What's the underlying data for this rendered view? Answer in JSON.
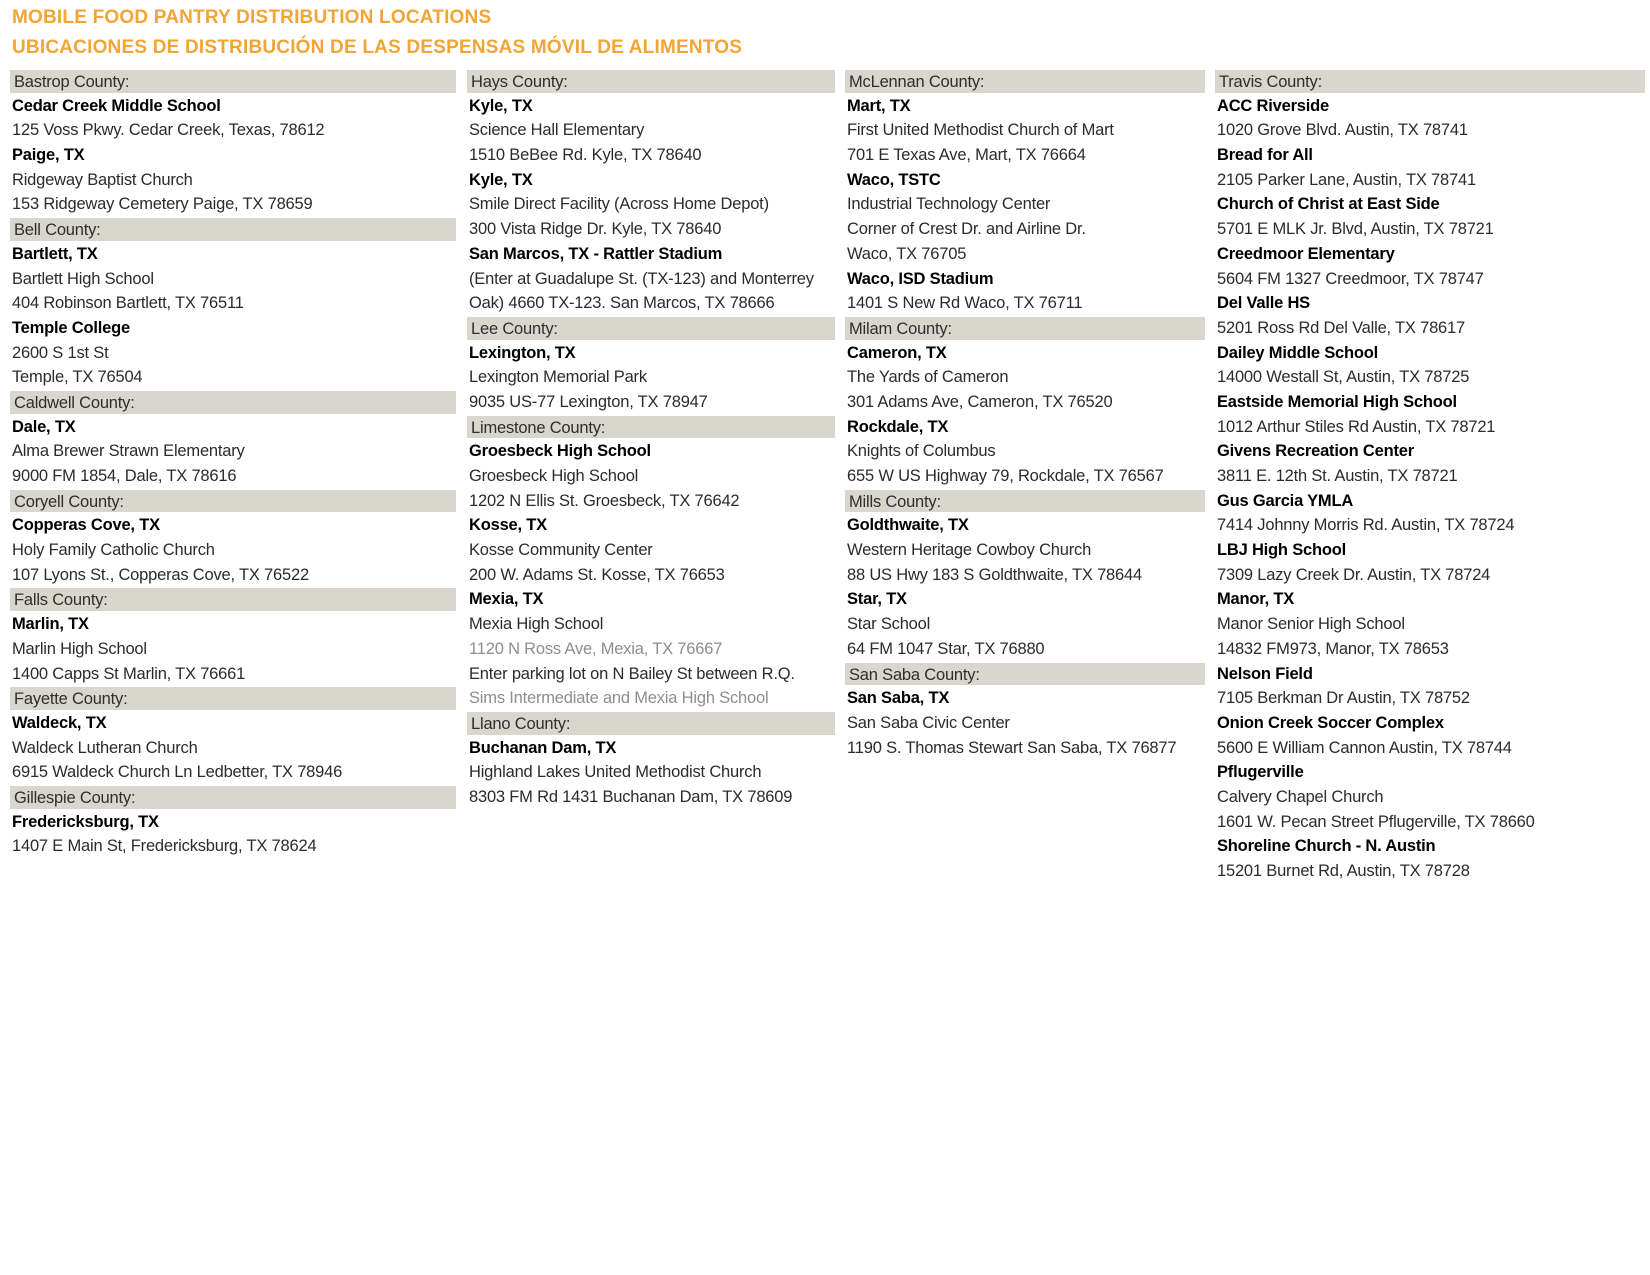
{
  "header": {
    "title_en": "MOBILE FOOD PANTRY DISTRIBUTION LOCATIONS",
    "title_es": "UBICACIONES DE DISTRIBUCIÓN DE LAS DESPENSAS MÓVIL DE ALIMENTOS"
  },
  "colors": {
    "title_orange": "#F2A434",
    "county_bar": "#D9D6CE",
    "body_text": "#2B2B2B",
    "muted_text": "#8E8E8E"
  },
  "columns": [
    {
      "items": [
        {
          "type": "county",
          "text": "Bastrop County:"
        },
        {
          "type": "bold",
          "text": "Cedar Creek Middle School"
        },
        {
          "type": "normal",
          "text": "125 Voss Pkwy. Cedar Creek, Texas, 78612"
        },
        {
          "type": "bold",
          "text": "Paige, TX"
        },
        {
          "type": "normal",
          "text": "Ridgeway Baptist Church"
        },
        {
          "type": "normal",
          "text": "153 Ridgeway Cemetery Paige, TX 78659"
        },
        {
          "type": "county",
          "text": "Bell County:"
        },
        {
          "type": "bold",
          "text": "Bartlett, TX"
        },
        {
          "type": "normal",
          "text": "Bartlett High School"
        },
        {
          "type": "normal",
          "text": "404 Robinson Bartlett, TX 76511"
        },
        {
          "type": "bold",
          "text": "Temple College"
        },
        {
          "type": "normal",
          "text": "2600 S 1st St"
        },
        {
          "type": "normal",
          "text": "Temple, TX 76504"
        },
        {
          "type": "county",
          "text": "Caldwell County:"
        },
        {
          "type": "bold",
          "text": "Dale, TX"
        },
        {
          "type": "normal",
          "text": "Alma Brewer Strawn Elementary"
        },
        {
          "type": "normal",
          "text": "9000 FM 1854, Dale, TX 78616"
        },
        {
          "type": "county",
          "text": "Coryell County:"
        },
        {
          "type": "bold",
          "text": "Copperas Cove, TX"
        },
        {
          "type": "normal",
          "text": "Holy Family Catholic Church"
        },
        {
          "type": "normal",
          "text": "107 Lyons St., Copperas Cove, TX 76522"
        },
        {
          "type": "county",
          "text": "Falls County:"
        },
        {
          "type": "bold",
          "text": "Marlin, TX"
        },
        {
          "type": "normal",
          "text": "Marlin High School"
        },
        {
          "type": "normal",
          "text": "1400 Capps St Marlin, TX 76661"
        },
        {
          "type": "county",
          "text": "Fayette County:"
        },
        {
          "type": "bold",
          "text": "Waldeck, TX"
        },
        {
          "type": "normal",
          "text": "Waldeck Lutheran Church"
        },
        {
          "type": "normal",
          "text": "6915 Waldeck Church Ln Ledbetter, TX 78946"
        },
        {
          "type": "county",
          "text": "Gillespie County:"
        },
        {
          "type": "bold",
          "text": "Fredericksburg, TX"
        },
        {
          "type": "normal",
          "text": "1407 E Main St, Fredericksburg, TX 78624"
        }
      ]
    },
    {
      "items": [
        {
          "type": "county",
          "text": "Hays County:"
        },
        {
          "type": "bold",
          "text": "Kyle, TX"
        },
        {
          "type": "normal",
          "text": "Science Hall Elementary"
        },
        {
          "type": "normal",
          "text": "1510 BeBee Rd. Kyle, TX 78640"
        },
        {
          "type": "bold",
          "text": "Kyle, TX"
        },
        {
          "type": "normal",
          "text": "Smile Direct Facility (Across Home Depot)"
        },
        {
          "type": "normal",
          "text": "300 Vista Ridge Dr. Kyle, TX 78640"
        },
        {
          "type": "bold",
          "text": "San Marcos, TX - Rattler Stadium"
        },
        {
          "type": "normal",
          "text": "(Enter at Guadalupe St. (TX-123) and Monterrey"
        },
        {
          "type": "normal",
          "text": "Oak) 4660 TX-123. San Marcos, TX 78666"
        },
        {
          "type": "county",
          "text": "Lee County:"
        },
        {
          "type": "bold",
          "text": "Lexington, TX"
        },
        {
          "type": "normal",
          "text": "Lexington Memorial Park"
        },
        {
          "type": "normal",
          "text": "9035 US-77 Lexington, TX 78947"
        },
        {
          "type": "county",
          "text": "Limestone County:"
        },
        {
          "type": "bold",
          "text": "Groesbeck High School"
        },
        {
          "type": "normal",
          "text": "Groesbeck High School"
        },
        {
          "type": "normal",
          "text": "1202 N Ellis St. Groesbeck, TX 76642"
        },
        {
          "type": "bold",
          "text": "Kosse, TX"
        },
        {
          "type": "normal",
          "text": "Kosse Community Center"
        },
        {
          "type": "normal",
          "text": "200 W. Adams St. Kosse, TX 76653"
        },
        {
          "type": "bold",
          "text": "Mexia, TX"
        },
        {
          "type": "normal",
          "text": "Mexia High School"
        },
        {
          "type": "gray",
          "text": "1120 N Ross Ave, Mexia, TX 76667"
        },
        {
          "type": "normal",
          "text": "Enter parking lot on N Bailey St between R.Q."
        },
        {
          "type": "gray",
          "text": "Sims Intermediate and Mexia High School"
        },
        {
          "type": "county",
          "text": "Llano County:"
        },
        {
          "type": "bold",
          "text": "Buchanan Dam, TX"
        },
        {
          "type": "normal",
          "text": "Highland Lakes United Methodist Church"
        },
        {
          "type": "normal",
          "text": "8303 FM Rd 1431 Buchanan Dam, TX 78609"
        }
      ]
    },
    {
      "items": [
        {
          "type": "county",
          "text": "McLennan County:"
        },
        {
          "type": "bold",
          "text": "Mart, TX"
        },
        {
          "type": "normal",
          "text": "First United Methodist Church of Mart"
        },
        {
          "type": "normal",
          "text": "701 E Texas Ave, Mart, TX 76664"
        },
        {
          "type": "bold",
          "text": "Waco, TSTC"
        },
        {
          "type": "normal",
          "text": "Industrial Technology Center"
        },
        {
          "type": "normal",
          "text": "Corner of Crest Dr. and Airline Dr."
        },
        {
          "type": "normal",
          "text": "Waco, TX 76705"
        },
        {
          "type": "bold",
          "text": "Waco, ISD Stadium"
        },
        {
          "type": "normal",
          "text": "1401 S New Rd Waco, TX 76711"
        },
        {
          "type": "county",
          "text": "Milam County:"
        },
        {
          "type": "bold",
          "text": "Cameron, TX"
        },
        {
          "type": "normal",
          "text": "The Yards of Cameron"
        },
        {
          "type": "normal",
          "text": "301 Adams Ave, Cameron, TX 76520"
        },
        {
          "type": "bold",
          "text": "Rockdale, TX"
        },
        {
          "type": "normal",
          "text": "Knights of Columbus"
        },
        {
          "type": "normal",
          "text": "655 W US Highway 79, Rockdale, TX 76567"
        },
        {
          "type": "county",
          "text": "Mills County:"
        },
        {
          "type": "bold",
          "text": "Goldthwaite, TX"
        },
        {
          "type": "normal",
          "text": "Western Heritage Cowboy Church"
        },
        {
          "type": "normal",
          "text": "88 US Hwy 183 S Goldthwaite, TX 78644"
        },
        {
          "type": "bold",
          "text": "Star, TX"
        },
        {
          "type": "normal",
          "text": "Star School"
        },
        {
          "type": "normal",
          "text": "64 FM 1047 Star, TX 76880"
        },
        {
          "type": "county",
          "text": "San Saba County:"
        },
        {
          "type": "bold",
          "text": "San Saba, TX"
        },
        {
          "type": "normal",
          "text": "San Saba Civic Center"
        },
        {
          "type": "normal",
          "text": "1190 S. Thomas Stewart San Saba, TX 76877"
        }
      ]
    },
    {
      "items": [
        {
          "type": "county",
          "text": "Travis County:"
        },
        {
          "type": "bold",
          "text": "ACC Riverside"
        },
        {
          "type": "normal",
          "text": "1020 Grove Blvd. Austin, TX 78741"
        },
        {
          "type": "bold",
          "text": "Bread for All"
        },
        {
          "type": "normal",
          "text": "2105 Parker Lane, Austin, TX 78741"
        },
        {
          "type": "bold",
          "text": "Church of Christ at East Side"
        },
        {
          "type": "normal",
          "text": "5701 E MLK Jr. Blvd, Austin, TX 78721"
        },
        {
          "type": "bold",
          "text": "Creedmoor Elementary"
        },
        {
          "type": "normal",
          "text": "5604 FM 1327 Creedmoor, TX 78747"
        },
        {
          "type": "bold",
          "text": "Del Valle HS"
        },
        {
          "type": "normal",
          "text": "5201 Ross Rd Del Valle, TX 78617"
        },
        {
          "type": "bold",
          "text": "Dailey Middle School"
        },
        {
          "type": "normal",
          "text": "14000 Westall St, Austin, TX 78725"
        },
        {
          "type": "bold",
          "text": "Eastside Memorial High School"
        },
        {
          "type": "normal",
          "text": "1012 Arthur Stiles Rd Austin, TX 78721"
        },
        {
          "type": "bold",
          "text": "Givens Recreation Center"
        },
        {
          "type": "normal",
          "text": "3811 E. 12th St. Austin, TX 78721"
        },
        {
          "type": "bold",
          "text": "Gus Garcia YMLA"
        },
        {
          "type": "normal",
          "text": "7414 Johnny Morris Rd. Austin, TX 78724"
        },
        {
          "type": "bold",
          "text": "LBJ High School"
        },
        {
          "type": "normal",
          "text": "7309 Lazy Creek Dr. Austin, TX 78724"
        },
        {
          "type": "bold",
          "text": "Manor, TX"
        },
        {
          "type": "normal",
          "text": "Manor Senior High School"
        },
        {
          "type": "normal",
          "text": "14832 FM973, Manor, TX 78653"
        },
        {
          "type": "bold",
          "text": "Nelson Field"
        },
        {
          "type": "normal",
          "text": "7105 Berkman Dr Austin, TX 78752"
        },
        {
          "type": "bold",
          "text": "Onion Creek Soccer Complex"
        },
        {
          "type": "normal",
          "text": "5600 E William Cannon Austin, TX 78744"
        },
        {
          "type": "bold",
          "text": "Pflugerville"
        },
        {
          "type": "normal",
          "text": "Calvery Chapel Church"
        },
        {
          "type": "normal",
          "text": "1601 W. Pecan Street Pflugerville, TX 78660"
        },
        {
          "type": "bold",
          "text": "Shoreline Church - N. Austin"
        },
        {
          "type": "normal",
          "text": "15201 Burnet Rd, Austin, TX 78728"
        }
      ]
    }
  ]
}
